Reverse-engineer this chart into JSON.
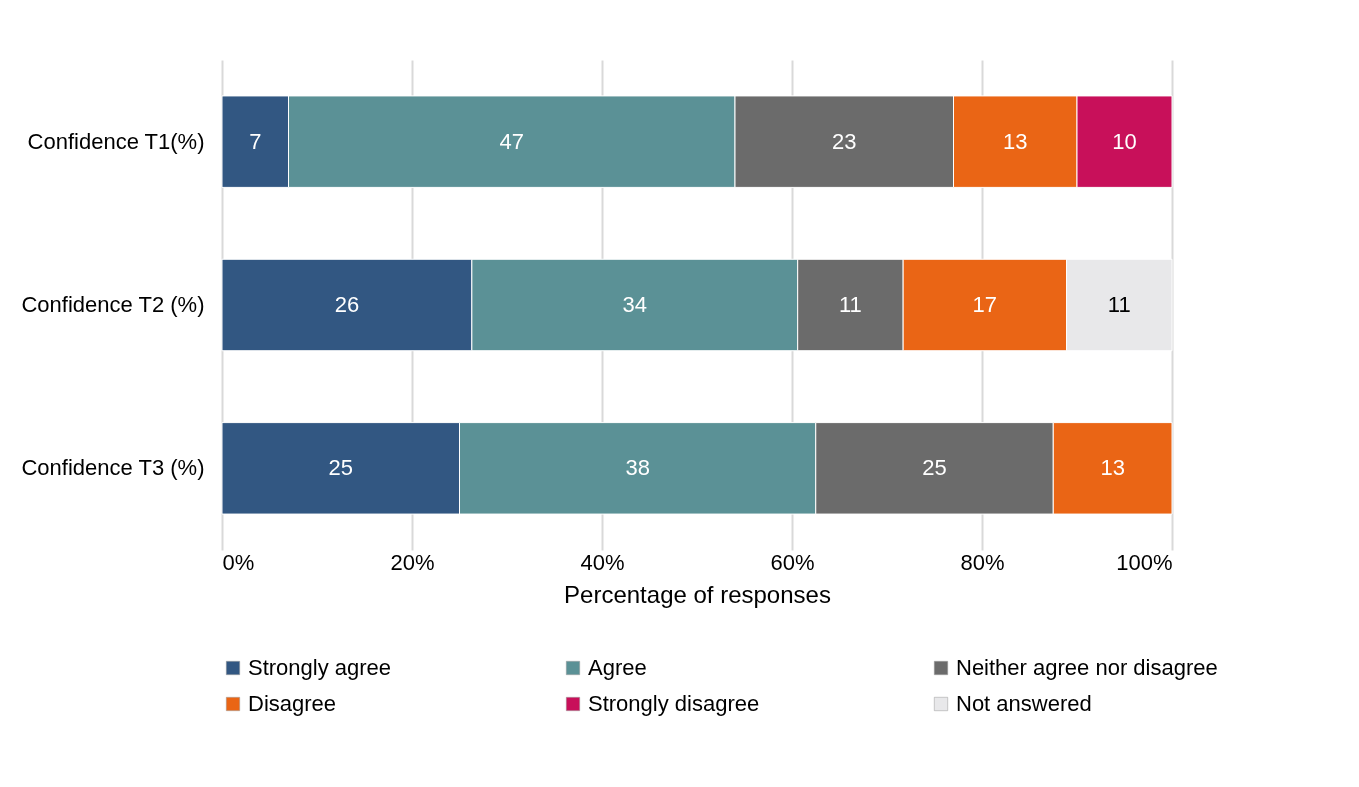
{
  "chart_data": {
    "type": "bar",
    "orientation": "horizontal",
    "stacked": true,
    "categories": [
      "Confidence T1(%)",
      "Confidence T2 (%)",
      "Confidence T3 (%)"
    ],
    "series": [
      {
        "name": "Strongly agree",
        "color": "#325782",
        "values": [
          7,
          26.3,
          25
        ],
        "value_labels": [
          "7",
          "26",
          "25"
        ]
      },
      {
        "name": "Agree",
        "color": "#5b9196",
        "values": [
          47,
          34.3,
          37.5
        ],
        "value_labels": [
          "47",
          "34",
          "38"
        ]
      },
      {
        "name": "Neither agree nor disagree",
        "color": "#6b6b6b",
        "values": [
          23,
          11.1,
          25
        ],
        "value_labels": [
          "23",
          "11",
          "25"
        ]
      },
      {
        "name": "Disagree",
        "color": "#ea6515",
        "values": [
          13,
          17.2,
          12.5
        ],
        "value_labels": [
          "13",
          "17",
          "13"
        ]
      },
      {
        "name": "Strongly disagree",
        "color": "#c8105a",
        "values": [
          10,
          null,
          null
        ],
        "value_labels": [
          "10",
          null,
          null
        ]
      },
      {
        "name": "Not answered",
        "color": "#e8e8ea",
        "values": [
          null,
          11.1,
          null
        ],
        "value_labels": [
          null,
          "11",
          null
        ]
      }
    ],
    "xlim": [
      0,
      100
    ],
    "xticks": [
      {
        "value": 0,
        "label": "0%"
      },
      {
        "value": 20,
        "label": "20%"
      },
      {
        "value": 40,
        "label": "40%"
      },
      {
        "value": 60,
        "label": "60%"
      },
      {
        "value": 80,
        "label": "80%"
      },
      {
        "value": 100,
        "label": "100%"
      }
    ],
    "xlabel": "Percentage of responses",
    "grid": "x",
    "legend": "bottom"
  }
}
